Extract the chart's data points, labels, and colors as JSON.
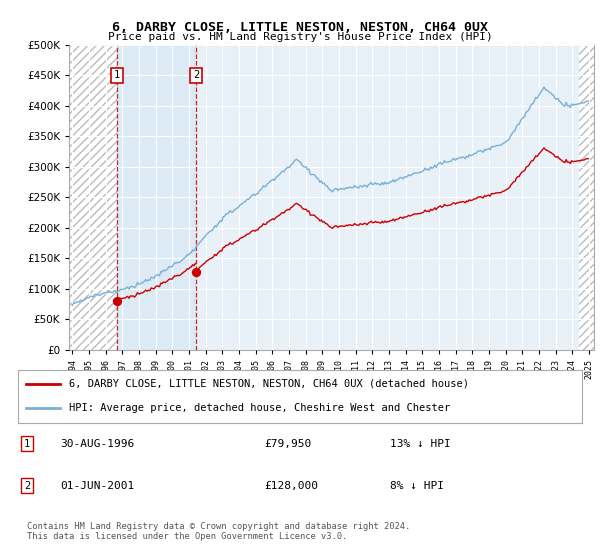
{
  "title": "6, DARBY CLOSE, LITTLE NESTON, NESTON, CH64 0UX",
  "subtitle": "Price paid vs. HM Land Registry's House Price Index (HPI)",
  "sale1_price": 79950,
  "sale1_year": 1996.67,
  "sale2_price": 128000,
  "sale2_year": 2001.42,
  "legend_line1": "6, DARBY CLOSE, LITTLE NESTON, NESTON, CH64 0UX (detached house)",
  "legend_line2": "HPI: Average price, detached house, Cheshire West and Chester",
  "footer": "Contains HM Land Registry data © Crown copyright and database right 2024.\nThis data is licensed under the Open Government Licence v3.0.",
  "background_color": "#ffffff",
  "plot_bg_color": "#e8f0f8",
  "grid_color": "#ffffff",
  "red_line_color": "#cc0000",
  "blue_line_color": "#7ab0d4",
  "dashed_red_color": "#cc0000",
  "ylim": [
    0,
    500000
  ],
  "xlim_start": 1993.8,
  "xlim_end": 2025.3,
  "hpi_start_year": 1994.0,
  "hpi_end_year": 2025.0,
  "hpi_step": 0.083
}
